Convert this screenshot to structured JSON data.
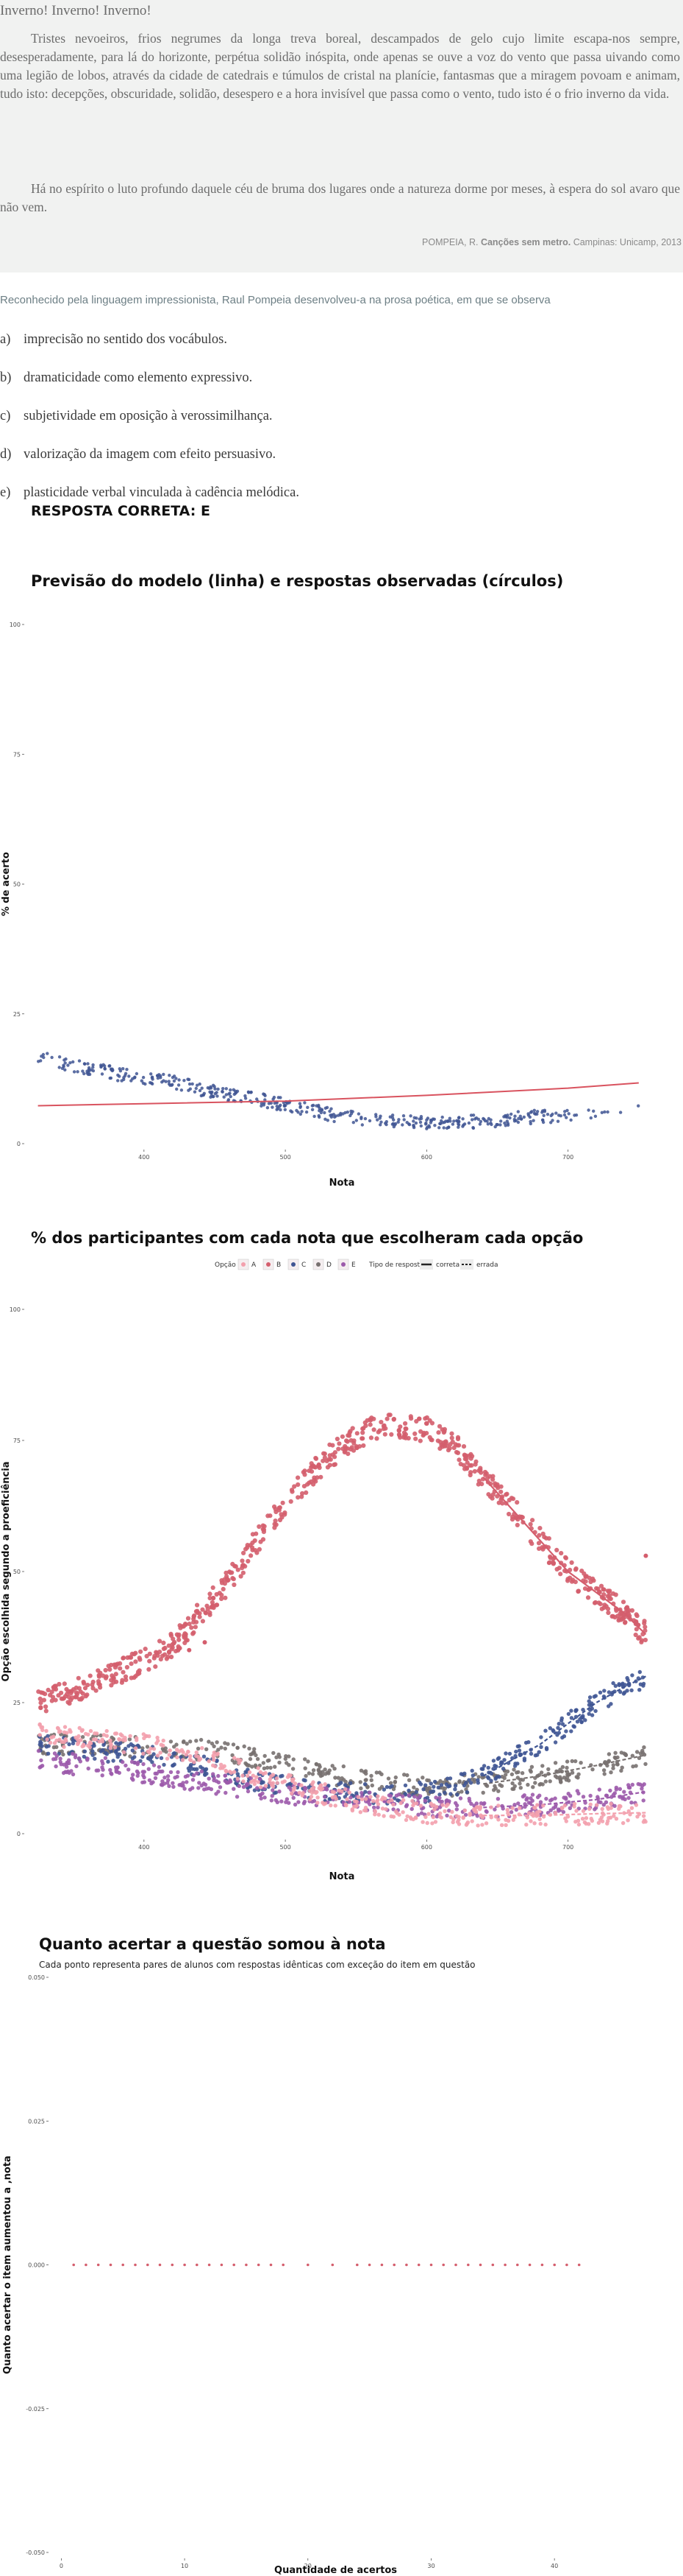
{
  "passage": {
    "title": "Inverno! Inverno! Inverno!",
    "paragraphs": [
      "Tristes nevoeiros, frios negrumes da longa treva boreal, descampados de gelo cujo limite escapa-nos sempre, desesperadamente, para lá do horizonte, perpétua solidão inóspita, onde apenas se ouve a voz do vento que passa uivando como uma legião de lobos, através da cidade de catedrais e túmulos de cristal na planície, fantasmas que a miragem povoam e animam, tudo isto: decepções, obscuridade, solidão, desespero e a hora invisível que passa como o vento, tudo isto é o frio inverno da vida.",
      "Há no espírito o luto profundo daquele céu de bruma dos lugares onde a natureza dorme por meses, à espera do sol avaro que não vem."
    ],
    "source_author": "POMPEIA, R.",
    "source_title": "Canções sem metro.",
    "source_rest": "Campinas: Unicamp, 2013"
  },
  "question": {
    "prompt": "Reconhecido pela linguagem impressionista, Raul Pompeia desenvolveu-a na prosa poética, em que se observa",
    "options": [
      {
        "letter": "a)",
        "text": "imprecisão no sentido dos vocábulos."
      },
      {
        "letter": "b)",
        "text": "dramaticidade como elemento expressivo."
      },
      {
        "letter": "c)",
        "text": "subjetividade em oposição à verossimilhança."
      },
      {
        "letter": "d)",
        "text": "valorização da imagem com efeito persuasivo."
      },
      {
        "letter": "e)",
        "text": "plasticidade verbal vinculada à cadência melódica."
      }
    ],
    "answer": "RESPOSTA CORRETA: E"
  },
  "colors": {
    "A": "#f3a0ad",
    "B": "#d45e6d",
    "C": "#3f5593",
    "D": "#787170",
    "E": "#9c5aab",
    "model_line": "#d9535f"
  },
  "chart_data": [
    {
      "type": "scatter",
      "title": "Previsão do modelo (linha) e respostas observadas (círculos)",
      "xlabel": "Nota",
      "ylabel": "% de acerto",
      "xlim": [
        320,
        760
      ],
      "ylim": [
        0,
        100
      ],
      "xticks": [
        400,
        500,
        600,
        700
      ],
      "yticks": [
        0,
        25,
        50,
        75,
        100
      ],
      "grid": false,
      "series": [
        {
          "kind": "points",
          "color": "#3f5593",
          "points": [
            [
              325,
              17
            ],
            [
              340,
              15.5
            ],
            [
              360,
              14.5
            ],
            [
              380,
              13.5
            ],
            [
              400,
              12.5
            ],
            [
              420,
              12
            ],
            [
              440,
              10.5
            ],
            [
              460,
              9.5
            ],
            [
              480,
              8.5
            ],
            [
              500,
              7.5
            ],
            [
              520,
              6.3
            ],
            [
              540,
              5.2
            ],
            [
              560,
              4.6
            ],
            [
              580,
              4.3
            ],
            [
              600,
              4.1
            ],
            [
              620,
              4.1
            ],
            [
              640,
              4.3
            ],
            [
              660,
              4.8
            ],
            [
              680,
              5.2
            ],
            [
              700,
              5.5
            ],
            [
              720,
              5.8
            ],
            [
              750,
              6.5
            ]
          ]
        },
        {
          "kind": "line",
          "color": "#d9535f",
          "points": [
            [
              325,
              7.3
            ],
            [
              400,
              7.7
            ],
            [
              500,
              8.2
            ],
            [
              600,
              9.3
            ],
            [
              700,
              10.7
            ],
            [
              750,
              11.7
            ]
          ]
        }
      ]
    },
    {
      "type": "scatter",
      "title": "% dos participantes com cada nota que escolheram cada opção",
      "xlabel": "Nota",
      "ylabel": "Opção escolhida segundo a proeficiência",
      "xlim": [
        320,
        760
      ],
      "ylim": [
        0,
        100
      ],
      "xticks": [
        400,
        500,
        600,
        700
      ],
      "yticks": [
        0,
        25,
        50,
        75,
        100
      ],
      "grid": false,
      "legend_position": "top",
      "legend": {
        "option_title": "Opção",
        "options": [
          "A",
          "B",
          "C",
          "D",
          "E"
        ],
        "type_title": "Tipo de resposta",
        "types": [
          "correta",
          "errada"
        ]
      },
      "series": [
        {
          "name": "A",
          "color": "#f3a0ad",
          "points": [
            [
              325,
              19
            ],
            [
              360,
              18
            ],
            [
              400,
              17
            ],
            [
              440,
              15
            ],
            [
              480,
              11
            ],
            [
              520,
              8
            ],
            [
              560,
              5.5
            ],
            [
              600,
              4
            ],
            [
              640,
              3.5
            ],
            [
              680,
              3.5
            ],
            [
              720,
              3.8
            ],
            [
              755,
              4
            ]
          ]
        },
        {
          "name": "B",
          "color": "#d45e6d",
          "points": [
            [
              325,
              25
            ],
            [
              360,
              28
            ],
            [
              400,
              33
            ],
            [
              420,
              36
            ],
            [
              440,
              42
            ],
            [
              460,
              48
            ],
            [
              480,
              56
            ],
            [
              500,
              63
            ],
            [
              520,
              69
            ],
            [
              540,
              74
            ],
            [
              560,
              77
            ],
            [
              580,
              78
            ],
            [
              600,
              77
            ],
            [
              620,
              74
            ],
            [
              640,
              68
            ],
            [
              660,
              62
            ],
            [
              680,
              56
            ],
            [
              700,
              50
            ],
            [
              720,
              46
            ],
            [
              740,
              42
            ],
            [
              755,
              38
            ]
          ]
        },
        {
          "name": "C",
          "color": "#3f5593",
          "points": [
            [
              325,
              17
            ],
            [
              360,
              16
            ],
            [
              400,
              15
            ],
            [
              440,
              13
            ],
            [
              480,
              10
            ],
            [
              520,
              8
            ],
            [
              560,
              7.5
            ],
            [
              600,
              8
            ],
            [
              620,
              9
            ],
            [
              640,
              11
            ],
            [
              660,
              14
            ],
            [
              680,
              17
            ],
            [
              700,
              21
            ],
            [
              720,
              25
            ],
            [
              740,
              28
            ],
            [
              755,
              30
            ]
          ]
        },
        {
          "name": "D",
          "color": "#787170",
          "points": [
            [
              325,
              17
            ],
            [
              360,
              17
            ],
            [
              400,
              16.5
            ],
            [
              440,
              16
            ],
            [
              480,
              14.5
            ],
            [
              520,
              12
            ],
            [
              560,
              10
            ],
            [
              600,
              9
            ],
            [
              640,
              9.5
            ],
            [
              680,
              11
            ],
            [
              720,
              13
            ],
            [
              755,
              15
            ]
          ]
        },
        {
          "name": "E",
          "color": "#9c5aab",
          "points": [
            [
              325,
              14
            ],
            [
              360,
              13
            ],
            [
              400,
              11.5
            ],
            [
              440,
              10
            ],
            [
              480,
              8.5
            ],
            [
              520,
              7
            ],
            [
              560,
              6
            ],
            [
              600,
              5.2
            ],
            [
              640,
              5
            ],
            [
              680,
              5.5
            ],
            [
              720,
              6.5
            ],
            [
              755,
              8
            ]
          ]
        }
      ]
    },
    {
      "type": "scatter",
      "title": "Quanto acertar a questão somou à nota",
      "subtitle": "Cada ponto representa pares de alunos com respostas idênticas com exceção do item em questão",
      "xlabel": "Quantidade de acertos",
      "ylabel": "Quanto acertar o item aumentou a ,nota",
      "xlim": [
        -0.5,
        45
      ],
      "ylim": [
        -0.05,
        0.05
      ],
      "xticks": [
        0,
        10,
        20,
        30,
        40
      ],
      "yticks": [
        -0.05,
        -0.025,
        0,
        0.025,
        0.05
      ],
      "ytick_labels": [
        "-0.050",
        "-0.025",
        "0.000",
        "0.025",
        "0.050"
      ],
      "grid": false,
      "series": [
        {
          "color": "#d45e6d",
          "x": [
            1,
            2,
            3,
            4,
            5,
            6,
            7,
            8,
            9,
            10,
            11,
            12,
            13,
            14,
            15,
            16,
            17,
            18,
            20,
            22,
            24,
            25,
            26,
            27,
            28,
            29,
            30,
            31,
            32,
            33,
            34,
            35,
            36,
            37,
            38,
            39,
            40,
            41,
            42
          ],
          "y": 0
        }
      ]
    }
  ]
}
